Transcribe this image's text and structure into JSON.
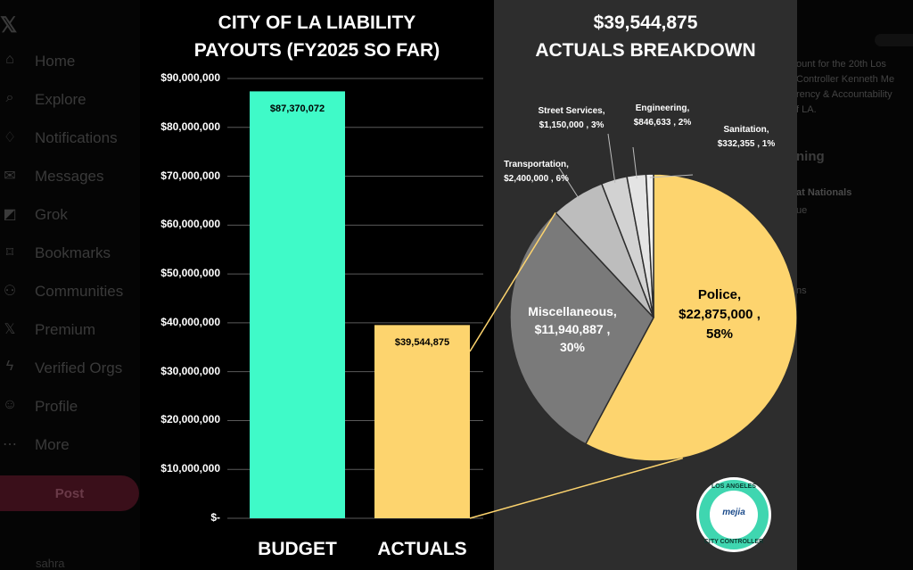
{
  "background": {
    "nav": [
      {
        "label": "Home",
        "icon": "home-icon",
        "glyph": "⌂"
      },
      {
        "label": "Explore",
        "icon": "search-icon",
        "glyph": "⌕"
      },
      {
        "label": "Notifications",
        "icon": "bell-icon",
        "glyph": "♢"
      },
      {
        "label": "Messages",
        "icon": "mail-icon",
        "glyph": "✉"
      },
      {
        "label": "Grok",
        "icon": "grok-icon",
        "glyph": "◩"
      },
      {
        "label": "Bookmarks",
        "icon": "bookmark-icon",
        "glyph": "⌑"
      },
      {
        "label": "Communities",
        "icon": "people-icon",
        "glyph": "⚇"
      },
      {
        "label": "Premium",
        "icon": "x-logo-icon",
        "glyph": "𝕏"
      },
      {
        "label": "Verified Orgs",
        "icon": "lightning-icon",
        "glyph": "ϟ"
      },
      {
        "label": "Profile",
        "icon": "person-icon",
        "glyph": "☺"
      },
      {
        "label": "More",
        "icon": "more-icon",
        "glyph": "⋯"
      }
    ],
    "logo_glyph": "𝕏",
    "post_label": "Post",
    "user_name": "sahra",
    "right_text": {
      "line1": "ount for the 20th Los",
      "line2": "Controller Kenneth Me",
      "line3": "rency & Accountability",
      "line4": "f LA.",
      "heading": "ning",
      "line5": "at Nationals",
      "line6": "ue",
      "line7": "ns"
    }
  },
  "left_title": {
    "line1": "CITY OF LA LIABILITY",
    "line2": "PAYOUTS (FY2025 SO FAR)"
  },
  "right_title": {
    "line1": "$39,544,875",
    "line2": "ACTUALS BREAKDOWN"
  },
  "logo": {
    "top_text": "LOS ANGELES",
    "bottom_text": "CITY CONTROLLER",
    "mark": "mejia"
  },
  "colors": {
    "budget": "#3ffac8",
    "actuals": "#fdd46e",
    "police": "#fdd46e",
    "misc": "#7a7a7a",
    "transport": "#bdbdbd",
    "street": "#d2d2d2",
    "engineering": "#e4e4e4",
    "sanitation": "#f2f2f2"
  },
  "chart_data": [
    {
      "type": "bar",
      "title": "CITY OF LA LIABILITY PAYOUTS (FY2025 SO FAR)",
      "categories": [
        "BUDGET",
        "ACTUALS"
      ],
      "values": [
        87370072,
        39544875
      ],
      "value_labels": [
        "$87,370,072",
        "$39,544,875"
      ],
      "ylim": [
        0,
        90000000
      ],
      "yticks": [
        0,
        10000000,
        20000000,
        30000000,
        40000000,
        50000000,
        60000000,
        70000000,
        80000000,
        90000000
      ],
      "ytick_labels": [
        "$-",
        "$10,000,000",
        "$20,000,000",
        "$30,000,000",
        "$40,000,000",
        "$50,000,000",
        "$60,000,000",
        "$70,000,000",
        "$80,000,000",
        "$90,000,000"
      ],
      "grid": true
    },
    {
      "type": "pie",
      "title": "$39,544,875 ACTUALS BREAKDOWN",
      "slices": [
        {
          "name": "Police",
          "value": 22875000,
          "pct": "58%",
          "value_label": "$22,875,000",
          "color_key": "police"
        },
        {
          "name": "Miscellaneous",
          "value": 11940887,
          "pct": "30%",
          "value_label": "$11,940,887",
          "color_key": "misc"
        },
        {
          "name": "Transportation",
          "value": 2400000,
          "pct": "6%",
          "value_label": "$2,400,000",
          "color_key": "transport"
        },
        {
          "name": "Street Services",
          "value": 1150000,
          "pct": "3%",
          "value_label": "$1,150,000",
          "color_key": "street"
        },
        {
          "name": "Engineering",
          "value": 846633,
          "pct": "2%",
          "value_label": "$846,633",
          "color_key": "engineering"
        },
        {
          "name": "Sanitation",
          "value": 332355,
          "pct": "1%",
          "value_label": "$332,355",
          "color_key": "sanitation"
        }
      ]
    }
  ]
}
